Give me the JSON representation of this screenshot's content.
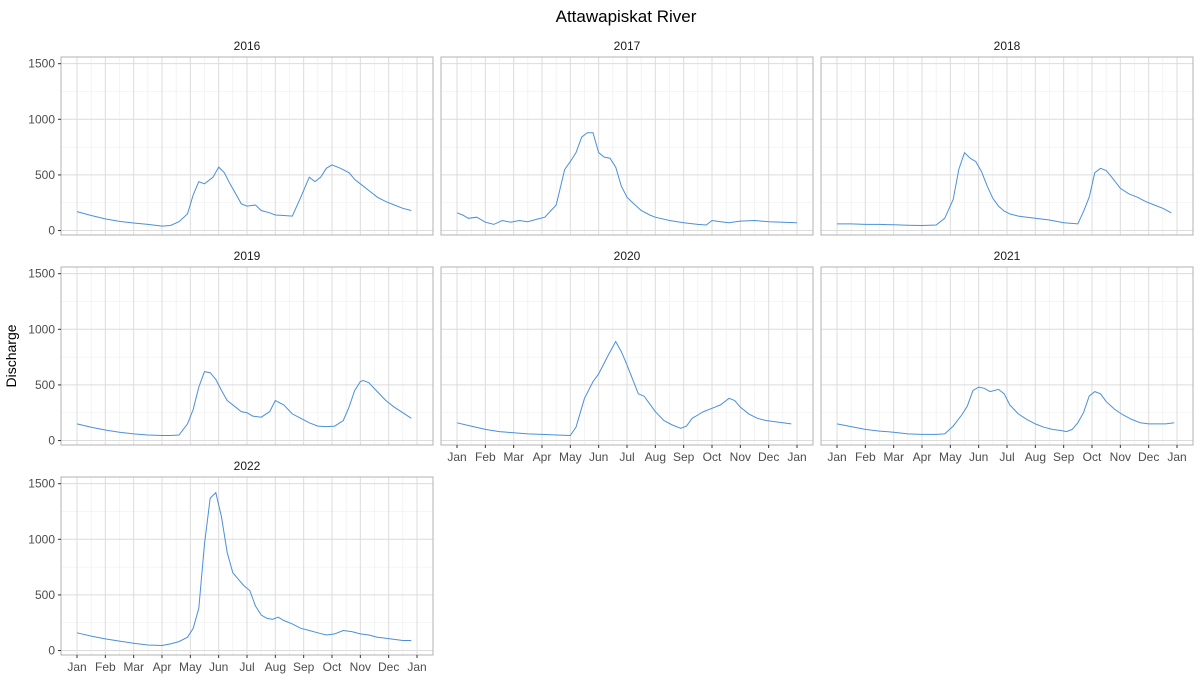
{
  "chart_data": {
    "type": "line",
    "title": "Attawapiskat River",
    "xlabel": "",
    "ylabel": "Discharge",
    "ylim": [
      -40,
      1560
    ],
    "y_ticks": [
      0,
      500,
      1000,
      1500
    ],
    "x_ticks": [
      "Jan",
      "Feb",
      "Mar",
      "Apr",
      "May",
      "Jun",
      "Jul",
      "Aug",
      "Sep",
      "Oct",
      "Nov",
      "Dec",
      "Jan"
    ],
    "x_unit": "month",
    "grid": true,
    "line_color": "#4a90d9",
    "panels": [
      {
        "name": "2016",
        "x": [
          0,
          0.5,
          1,
          1.5,
          2,
          2.5,
          3,
          3.3,
          3.6,
          3.9,
          4.1,
          4.3,
          4.5,
          4.8,
          5,
          5.2,
          5.4,
          5.6,
          5.8,
          6,
          6.3,
          6.5,
          6.8,
          7,
          7.3,
          7.6,
          7.9,
          8.2,
          8.4,
          8.6,
          8.8,
          9,
          9.3,
          9.6,
          9.8,
          10,
          10.3,
          10.6,
          10.9,
          11.2,
          11.5,
          11.8
        ],
        "y": [
          170,
          135,
          105,
          82,
          68,
          55,
          40,
          45,
          80,
          150,
          320,
          440,
          420,
          480,
          570,
          520,
          420,
          330,
          240,
          220,
          230,
          180,
          160,
          140,
          135,
          130,
          300,
          480,
          440,
          480,
          560,
          590,
          560,
          520,
          460,
          420,
          360,
          300,
          260,
          230,
          200,
          180
        ]
      },
      {
        "name": "2017",
        "x": [
          0,
          0.2,
          0.4,
          0.7,
          1,
          1.3,
          1.6,
          1.9,
          2.2,
          2.5,
          2.8,
          3.1,
          3.5,
          3.8,
          4,
          4.2,
          4.4,
          4.6,
          4.8,
          5,
          5.2,
          5.4,
          5.6,
          5.8,
          6,
          6.2,
          6.5,
          6.8,
          7,
          7.5,
          8,
          8.5,
          8.8,
          9,
          9.3,
          9.6,
          10,
          10.5,
          11,
          11.5,
          12
        ],
        "y": [
          160,
          140,
          110,
          120,
          75,
          55,
          90,
          75,
          90,
          80,
          100,
          120,
          230,
          550,
          620,
          700,
          840,
          880,
          880,
          700,
          660,
          650,
          570,
          400,
          300,
          250,
          180,
          140,
          120,
          90,
          70,
          55,
          50,
          90,
          80,
          70,
          85,
          90,
          80,
          75,
          70
        ]
      },
      {
        "name": "2018",
        "x": [
          0,
          0.5,
          1,
          1.5,
          2,
          2.5,
          3,
          3.5,
          3.8,
          4.1,
          4.3,
          4.5,
          4.7,
          4.9,
          5.1,
          5.3,
          5.5,
          5.7,
          5.9,
          6.1,
          6.4,
          6.7,
          7,
          7.5,
          8,
          8.5,
          8.7,
          8.9,
          9.1,
          9.3,
          9.5,
          9.7,
          10,
          10.3,
          10.6,
          10.9,
          11.2,
          11.5,
          11.8
        ],
        "y": [
          60,
          60,
          55,
          55,
          52,
          48,
          45,
          50,
          110,
          280,
          550,
          700,
          650,
          620,
          530,
          400,
          290,
          220,
          175,
          150,
          130,
          120,
          110,
          95,
          70,
          60,
          170,
          300,
          520,
          560,
          540,
          480,
          380,
          330,
          300,
          260,
          230,
          200,
          160
        ]
      },
      {
        "name": "2019",
        "x": [
          0,
          0.5,
          1,
          1.5,
          2,
          2.5,
          3,
          3.3,
          3.6,
          3.9,
          4.1,
          4.3,
          4.5,
          4.7,
          4.9,
          5.1,
          5.3,
          5.6,
          5.8,
          6,
          6.2,
          6.5,
          6.8,
          7,
          7.3,
          7.6,
          7.9,
          8.2,
          8.5,
          8.8,
          9.1,
          9.4,
          9.6,
          9.8,
          10,
          10.1,
          10.3,
          10.6,
          10.9,
          11.2,
          11.5,
          11.8
        ],
        "y": [
          150,
          120,
          95,
          75,
          60,
          50,
          45,
          45,
          50,
          150,
          280,
          480,
          620,
          610,
          550,
          450,
          360,
          300,
          260,
          250,
          220,
          210,
          260,
          360,
          320,
          240,
          200,
          160,
          130,
          125,
          130,
          180,
          300,
          450,
          530,
          540,
          520,
          440,
          360,
          300,
          250,
          200
        ]
      },
      {
        "name": "2020",
        "x": [
          0,
          0.5,
          1,
          1.5,
          2,
          2.5,
          3,
          3.5,
          4,
          4.2,
          4.5,
          4.8,
          5,
          5.3,
          5.6,
          5.8,
          6,
          6.2,
          6.4,
          6.6,
          6.8,
          7,
          7.3,
          7.6,
          7.9,
          8.1,
          8.3,
          8.5,
          8.7,
          9,
          9.3,
          9.6,
          9.8,
          10,
          10.3,
          10.6,
          10.9,
          11.2,
          11.5,
          11.8
        ],
        "y": [
          160,
          130,
          100,
          80,
          70,
          60,
          55,
          50,
          45,
          120,
          380,
          530,
          600,
          750,
          890,
          800,
          680,
          550,
          420,
          400,
          330,
          260,
          180,
          140,
          110,
          130,
          200,
          230,
          260,
          290,
          320,
          380,
          360,
          300,
          240,
          200,
          180,
          170,
          160,
          150
        ]
      },
      {
        "name": "2021",
        "x": [
          0,
          0.5,
          1,
          1.5,
          2,
          2.5,
          3,
          3.5,
          3.8,
          4.1,
          4.4,
          4.6,
          4.8,
          5,
          5.2,
          5.4,
          5.7,
          5.9,
          6.1,
          6.4,
          6.7,
          7,
          7.3,
          7.6,
          7.9,
          8.1,
          8.3,
          8.5,
          8.7,
          8.9,
          9.1,
          9.3,
          9.5,
          9.8,
          10.1,
          10.4,
          10.7,
          11,
          11.3,
          11.6,
          11.9
        ],
        "y": [
          150,
          125,
          100,
          85,
          75,
          60,
          55,
          55,
          60,
          130,
          230,
          310,
          450,
          480,
          470,
          440,
          460,
          420,
          320,
          240,
          190,
          150,
          120,
          100,
          90,
          80,
          100,
          160,
          250,
          400,
          440,
          420,
          350,
          280,
          230,
          190,
          160,
          150,
          150,
          150,
          160
        ]
      },
      {
        "name": "2022",
        "x": [
          0,
          0.5,
          1,
          1.5,
          2,
          2.5,
          3,
          3.3,
          3.6,
          3.9,
          4.1,
          4.3,
          4.5,
          4.7,
          4.9,
          5.1,
          5.3,
          5.5,
          5.7,
          5.9,
          6.1,
          6.3,
          6.5,
          6.7,
          6.9,
          7.1,
          7.3,
          7.6,
          7.9,
          8.2,
          8.5,
          8.8,
          9.1,
          9.4,
          9.7,
          10,
          10.3,
          10.6,
          10.9,
          11.2,
          11.5,
          11.8
        ],
        "y": [
          160,
          130,
          105,
          85,
          65,
          50,
          45,
          60,
          80,
          120,
          200,
          380,
          960,
          1370,
          1420,
          1200,
          880,
          700,
          640,
          580,
          540,
          400,
          320,
          290,
          280,
          300,
          270,
          240,
          200,
          180,
          160,
          140,
          150,
          180,
          170,
          150,
          140,
          120,
          110,
          100,
          90,
          90
        ]
      }
    ]
  }
}
